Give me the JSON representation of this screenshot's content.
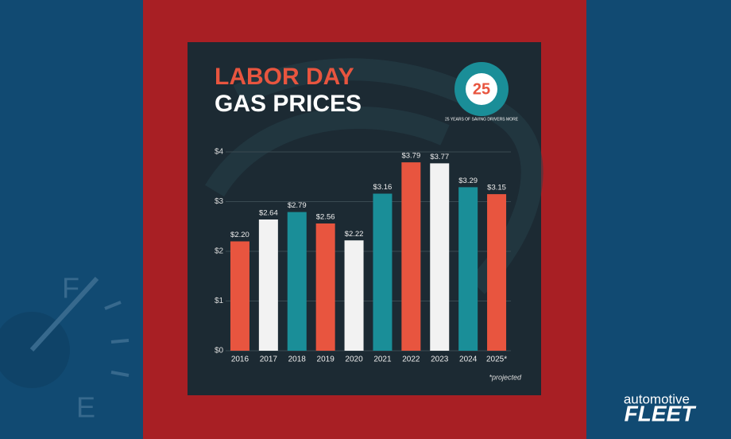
{
  "chart_data": {
    "type": "bar",
    "title_line1": "LABOR DAY",
    "title_line2": "GAS PRICES",
    "badge": {
      "number": "25",
      "text": "25 YEARS OF SAVING DRIVERS MORE"
    },
    "categories": [
      "2016",
      "2017",
      "2018",
      "2019",
      "2020",
      "2021",
      "2022",
      "2023",
      "2024",
      "2025*"
    ],
    "values": [
      2.2,
      2.64,
      2.79,
      2.56,
      2.22,
      3.16,
      3.79,
      3.77,
      3.29,
      3.15
    ],
    "value_labels": [
      "$2.20",
      "$2.64",
      "$2.79",
      "$2.56",
      "$2.22",
      "$3.16",
      "$3.79",
      "$3.77",
      "$3.29",
      "$3.15"
    ],
    "colors": [
      "#e8553f",
      "#f2f2f2",
      "#1a8e98",
      "#e8553f",
      "#f2f2f2",
      "#1a8e98",
      "#e8553f",
      "#f2f2f2",
      "#1a8e98",
      "#e8553f"
    ],
    "ylim": [
      0,
      4
    ],
    "yticks": [
      {
        "value": 0,
        "label": "$0"
      },
      {
        "value": 1,
        "label": "$1"
      },
      {
        "value": 2,
        "label": "$2"
      },
      {
        "value": 3,
        "label": "$3"
      },
      {
        "value": 4,
        "label": "$4"
      }
    ],
    "grid": true,
    "footnote": "*projected"
  },
  "gauge": {
    "full": "F",
    "empty": "E"
  },
  "logo": {
    "line1": "automotive",
    "line2": "FLEET"
  }
}
